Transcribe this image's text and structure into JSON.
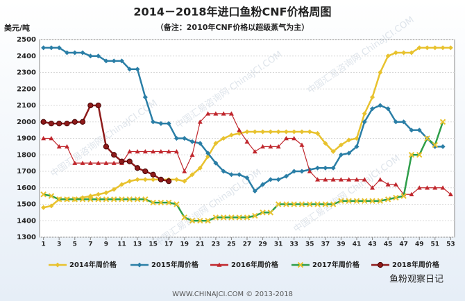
{
  "chart_data": {
    "type": "line",
    "title": "2014－2018年进口鱼粉CNF价格周图",
    "subtitle": "（备注：2010年CNF价格以超级蒸气为主）",
    "y_label": "美元/吨",
    "watermark": "中国汇易咨询网 ChinaJCI.COM",
    "source": "WWW.CHINAJCI.COM © 2013-2018",
    "logo_text": "鱼粉观察日记",
    "x": [
      1,
      2,
      3,
      4,
      5,
      6,
      7,
      8,
      9,
      10,
      11,
      12,
      13,
      14,
      15,
      16,
      17,
      18,
      19,
      20,
      21,
      22,
      23,
      24,
      25,
      26,
      27,
      28,
      29,
      30,
      31,
      32,
      33,
      34,
      35,
      36,
      37,
      38,
      39,
      40,
      41,
      42,
      43,
      44,
      45,
      46,
      47,
      48,
      49,
      50,
      51,
      52,
      53
    ],
    "xlim": [
      0.5,
      53.5
    ],
    "xticks": [
      1,
      3,
      5,
      7,
      9,
      11,
      13,
      15,
      17,
      19,
      21,
      23,
      25,
      27,
      29,
      31,
      33,
      35,
      37,
      39,
      41,
      43,
      45,
      47,
      49,
      51,
      53
    ],
    "ylim": [
      1300,
      2500
    ],
    "yticks": [
      1300,
      1400,
      1500,
      1600,
      1700,
      1800,
      1900,
      2000,
      2100,
      2200,
      2300,
      2400,
      2500
    ],
    "grid": true,
    "legend": "bottom",
    "series": [
      {
        "name": "2014年周价格",
        "color": "#e8c22e",
        "marker": "diamond",
        "values": [
          1480,
          1490,
          1530,
          1530,
          1530,
          1540,
          1550,
          1560,
          1570,
          1590,
          1620,
          1640,
          1650,
          1650,
          1650,
          1650,
          1650,
          1650,
          1640,
          1680,
          1720,
          1790,
          1870,
          1900,
          1920,
          1930,
          1940,
          1940,
          1940,
          1940,
          1940,
          1940,
          1940,
          1940,
          1940,
          1930,
          1870,
          1820,
          1860,
          1890,
          1900,
          2050,
          2150,
          2300,
          2400,
          2420,
          2420,
          2420,
          2450,
          2450,
          2450,
          2450,
          2450
        ]
      },
      {
        "name": "2015年周价格",
        "color": "#2a7ea6",
        "marker": "diamond",
        "values": [
          2450,
          2450,
          2450,
          2420,
          2420,
          2420,
          2400,
          2400,
          2370,
          2370,
          2370,
          2320,
          2320,
          2150,
          2000,
          1990,
          1990,
          1900,
          1900,
          1880,
          1870,
          1810,
          1750,
          1700,
          1680,
          1680,
          1660,
          1580,
          1620,
          1650,
          1650,
          1670,
          1700,
          1700,
          1710,
          1720,
          1720,
          1720,
          1800,
          1810,
          1850,
          2000,
          2080,
          2100,
          2080,
          2000,
          2000,
          1950,
          1950,
          1900,
          1850,
          1850,
          null
        ]
      },
      {
        "name": "2016年周价格",
        "color": "#c0272d",
        "marker": "triangle",
        "values": [
          1900,
          1900,
          1850,
          1850,
          1750,
          1750,
          1750,
          1750,
          1750,
          1750,
          1750,
          1820,
          1820,
          1820,
          1820,
          1820,
          1820,
          1820,
          1700,
          1800,
          2000,
          2050,
          2050,
          2050,
          2050,
          1950,
          1880,
          1820,
          1850,
          1850,
          1850,
          1900,
          1900,
          1860,
          1700,
          1650,
          1650,
          1650,
          1650,
          1650,
          1650,
          1650,
          1600,
          1650,
          1620,
          1620,
          1560,
          1560,
          1600,
          1600,
          1600,
          1600,
          1560
        ]
      },
      {
        "name": "2017年周价格",
        "color": "#2e9e4a",
        "marker": "x",
        "values": [
          1560,
          1550,
          1530,
          1530,
          1530,
          1530,
          1530,
          1530,
          1530,
          1530,
          1530,
          1530,
          1530,
          1530,
          1510,
          1510,
          1510,
          1500,
          1420,
          1400,
          1400,
          1400,
          1420,
          1420,
          1420,
          1420,
          1420,
          1430,
          1450,
          1450,
          1500,
          1500,
          1500,
          1500,
          1500,
          1500,
          1500,
          1500,
          1520,
          1520,
          1520,
          1520,
          1520,
          1520,
          1530,
          1540,
          1550,
          1800,
          1800,
          1900,
          1860,
          2000,
          null
        ]
      },
      {
        "name": "2018年周价格",
        "color": "#8e1b1b",
        "marker": "circle",
        "values": [
          2000,
          1990,
          1990,
          1990,
          2000,
          2000,
          2100,
          2100,
          1850,
          1800,
          1760,
          1760,
          1720,
          1700,
          1680,
          1650,
          1640,
          null,
          null,
          null,
          null,
          null,
          null,
          null,
          null,
          null,
          null,
          null,
          null,
          null,
          null,
          null,
          null,
          null,
          null,
          null,
          null,
          null,
          null,
          null,
          null,
          null,
          null,
          null,
          null,
          null,
          null,
          null,
          null,
          null,
          null,
          null,
          null
        ]
      }
    ]
  }
}
